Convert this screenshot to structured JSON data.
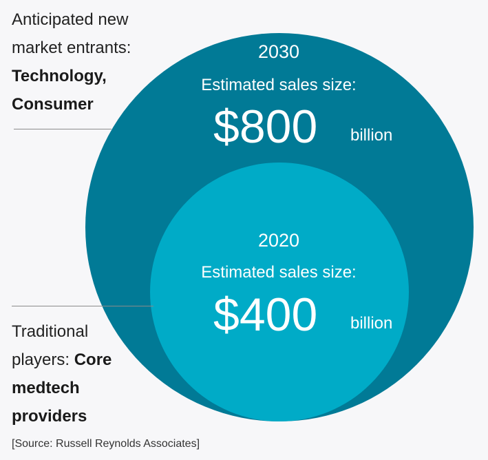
{
  "outer": {
    "year": "2030",
    "label": "Estimated sales size:",
    "amount": "$800",
    "unit": "billion",
    "color": "#017a96"
  },
  "inner": {
    "year": "2020",
    "label": "Estimated sales size:",
    "amount": "$400",
    "unit": "billion",
    "color": "#00abc7"
  },
  "new_entrants": {
    "prefix_line1": "Anticipated new",
    "prefix_line2": "market entrants:",
    "bold_line1": "Technology,",
    "bold_line2": "Consumer"
  },
  "traditional": {
    "line1": "Traditional",
    "prefix": "players: ",
    "bold1": "Core",
    "bold2": "medtech",
    "bold3": "providers"
  },
  "source": "[Source: Russell Reynolds Associates]"
}
